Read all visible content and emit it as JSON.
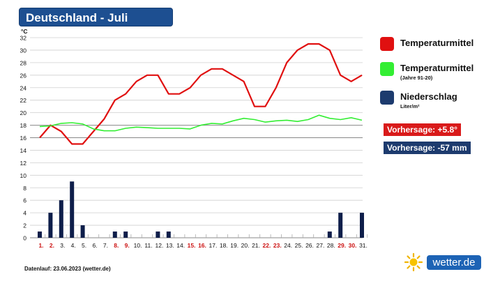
{
  "header": {
    "title": "Deutschland - Juli"
  },
  "legend": [
    {
      "label": "Temperaturmittel",
      "sublabel": "",
      "color": "#e01010"
    },
    {
      "label": "Temperaturmittel",
      "sublabel": "(Jahre 91-20)",
      "color": "#33ee33"
    },
    {
      "label": "Niederschlag",
      "sublabel": "Liter/m²",
      "color": "#1d3b6e"
    }
  ],
  "forecasts": [
    {
      "text": "Vorhersage: +5.8°",
      "color": "#d91a1a"
    },
    {
      "text": "Vorhersage: -57 mm",
      "color": "#1d3b6e"
    }
  ],
  "footer": {
    "note": "Datenlauf: 23.06.2023 (wetter.de)"
  },
  "brand": {
    "name": "wetter",
    "suffix": ".de",
    "sun_icon": "sun-icon"
  },
  "chart_data": [
    {
      "type": "line",
      "ylabel": "°C",
      "ylim": [
        0,
        32
      ],
      "yticks": [
        0,
        2,
        4,
        6,
        8,
        10,
        12,
        14,
        16,
        18,
        20,
        22,
        24,
        26,
        28,
        30,
        32
      ],
      "grid": true,
      "categories": [
        "1.",
        "2.",
        "3.",
        "4.",
        "5.",
        "6.",
        "7.",
        "8.",
        "9.",
        "10.",
        "11.",
        "12.",
        "13.",
        "14.",
        "15.",
        "16.",
        "17.",
        "18.",
        "19.",
        "20.",
        "21.",
        "22.",
        "23.",
        "24.",
        "25.",
        "26.",
        "27.",
        "28.",
        "29.",
        "30.",
        "31."
      ],
      "highlight_days": [
        1,
        2,
        8,
        9,
        15,
        16,
        22,
        23,
        29,
        30
      ],
      "highlight_color": "#cc1111",
      "series": [
        {
          "name": "Temperaturmittel",
          "color": "#e01010",
          "values": [
            16,
            18,
            17,
            15,
            15,
            17,
            19,
            22,
            23,
            25,
            26,
            26,
            23,
            23,
            24,
            26,
            27,
            27,
            26,
            25,
            21,
            21,
            24,
            28,
            30,
            31,
            31,
            30,
            26,
            25,
            26
          ]
        },
        {
          "name": "Temperaturmittel (Jahre 91-20)",
          "color": "#33ee33",
          "values": [
            17.8,
            17.9,
            18.3,
            18.4,
            18.2,
            17.4,
            17.1,
            17.1,
            17.5,
            17.7,
            17.6,
            17.5,
            17.5,
            17.5,
            17.4,
            18.0,
            18.3,
            18.2,
            18.7,
            19.1,
            18.9,
            18.5,
            18.7,
            18.8,
            18.6,
            18.9,
            19.6,
            19.1,
            18.9,
            19.2,
            18.8
          ]
        }
      ]
    },
    {
      "type": "bar",
      "ylabel": "Liter/m²",
      "ylim": [
        0,
        10
      ],
      "yticks": [
        0,
        2,
        4,
        6,
        8,
        10
      ],
      "series": [
        {
          "name": "Niederschlag",
          "color": "#0e1e4a",
          "values": [
            1,
            4,
            6,
            9,
            2,
            0,
            0,
            1,
            1,
            0,
            0,
            1,
            1,
            0,
            0,
            0,
            0,
            0,
            0,
            0,
            0,
            0,
            0,
            0,
            0,
            0,
            0,
            1,
            4,
            0,
            4
          ]
        }
      ]
    }
  ]
}
